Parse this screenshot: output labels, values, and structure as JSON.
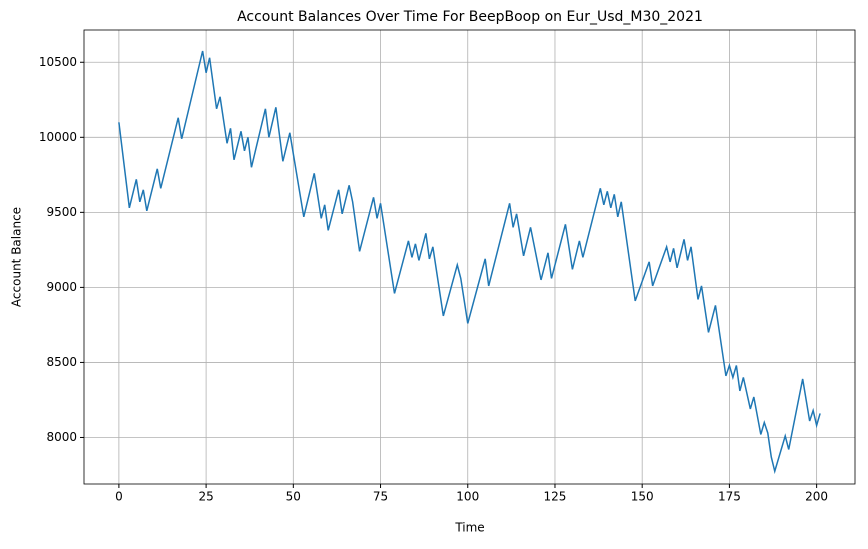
{
  "chart_data": {
    "type": "line",
    "title": "Account Balances Over Time For BeepBoop on Eur_Usd_M30_2021",
    "x_label": "Time",
    "y_label": "Account Balance",
    "x": [
      0,
      3,
      5,
      6,
      7,
      8,
      11,
      12,
      17,
      18,
      24,
      25,
      26,
      28,
      29,
      31,
      32,
      33,
      35,
      36,
      37,
      38,
      42,
      43,
      45,
      47,
      49,
      53,
      56,
      58,
      59,
      60,
      63,
      64,
      66,
      67,
      69,
      73,
      74,
      75,
      79,
      83,
      84,
      85,
      86,
      88,
      89,
      90,
      93,
      97,
      98,
      100,
      105,
      106,
      112,
      113,
      114,
      116,
      118,
      121,
      123,
      124,
      128,
      130,
      132,
      133,
      138,
      139,
      140,
      141,
      142,
      143,
      144,
      148,
      152,
      153,
      157,
      158,
      159,
      160,
      162,
      163,
      164,
      166,
      167,
      169,
      171,
      174,
      175,
      176,
      177,
      178,
      179,
      181,
      182,
      184,
      185,
      186,
      187,
      188,
      191,
      192,
      196,
      198,
      199,
      200,
      201
    ],
    "series": [
      {
        "color": "#1f77b4",
        "values": [
          10100,
          9530,
          9720,
          9570,
          9650,
          9510,
          9790,
          9660,
          10130,
          9990,
          10575,
          10430,
          10530,
          10190,
          10270,
          9960,
          10060,
          9850,
          10040,
          9910,
          10000,
          9800,
          10190,
          10000,
          10200,
          9840,
          10030,
          9470,
          9760,
          9460,
          9550,
          9380,
          9650,
          9490,
          9680,
          9570,
          9240,
          9600,
          9460,
          9560,
          8960,
          9310,
          9200,
          9290,
          9180,
          9360,
          9190,
          9270,
          8810,
          9150,
          9060,
          8760,
          9190,
          9010,
          9560,
          9400,
          9490,
          9210,
          9400,
          9050,
          9230,
          9060,
          9420,
          9120,
          9310,
          9200,
          9660,
          9550,
          9640,
          9530,
          9620,
          9470,
          9570,
          8910,
          9170,
          9010,
          9270,
          9170,
          9260,
          9130,
          9320,
          9180,
          9270,
          8920,
          9010,
          8700,
          8880,
          8410,
          8480,
          8400,
          8480,
          8310,
          8400,
          8190,
          8270,
          8020,
          8100,
          8030,
          7870,
          7775,
          8010,
          7920,
          8390,
          8110,
          8180,
          8080,
          8160
        ]
      }
    ],
    "xlim": [
      -10,
      211
    ],
    "ylim": [
      7690,
      10715
    ],
    "xticks": [
      0,
      25,
      50,
      75,
      100,
      125,
      150,
      175,
      200
    ],
    "yticks": [
      8000,
      8500,
      9000,
      9500,
      10000,
      10500
    ],
    "grid": true
  }
}
